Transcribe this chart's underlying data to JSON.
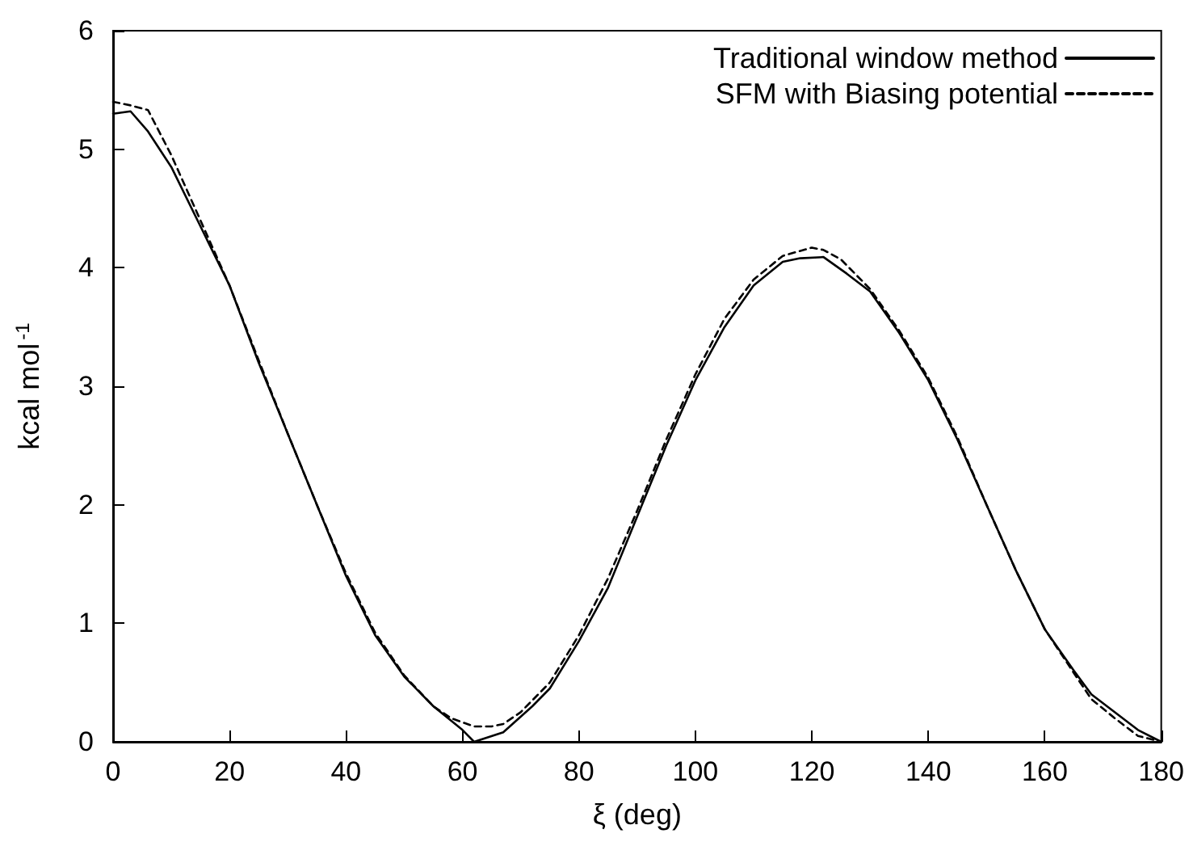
{
  "chart_data": {
    "type": "line",
    "xlabel": "ξ (deg)",
    "ylabel": "kcal mol$^{-1}$",
    "xlim": [
      0,
      180
    ],
    "xticks": [
      0,
      20,
      40,
      60,
      80,
      100,
      120,
      140,
      160,
      180
    ],
    "ylim": [
      0,
      6
    ],
    "yticks": [
      0,
      1,
      2,
      3,
      4,
      5,
      6
    ],
    "grid": false,
    "legend": "top right",
    "marker": "none",
    "series": [
      {
        "name": "Traditional window method",
        "color": "#000000",
        "line_style": "solid",
        "x": [
          0,
          3,
          6,
          10,
          15,
          20,
          25,
          30,
          35,
          40,
          45,
          50,
          55,
          60,
          62,
          67,
          72,
          75,
          80,
          85,
          90,
          95,
          100,
          105,
          110,
          115,
          118,
          122,
          126,
          130,
          135,
          140,
          145,
          150,
          155,
          160,
          165,
          168,
          172,
          176,
          180
        ],
        "values": [
          5.3,
          5.32,
          5.15,
          4.85,
          4.35,
          3.85,
          3.2,
          2.6,
          2.0,
          1.4,
          0.9,
          0.55,
          0.3,
          0.1,
          0.0,
          0.08,
          0.3,
          0.45,
          0.85,
          1.3,
          1.9,
          2.5,
          3.05,
          3.5,
          3.85,
          4.05,
          4.08,
          4.09,
          3.95,
          3.8,
          3.45,
          3.05,
          2.55,
          2.0,
          1.45,
          0.95,
          0.6,
          0.4,
          0.25,
          0.1,
          0.0
        ]
      },
      {
        "name": "SFM with Biasing potential",
        "color": "#000000",
        "line_style": "dashed",
        "x": [
          0,
          3,
          6,
          10,
          15,
          20,
          25,
          30,
          35,
          40,
          45,
          50,
          55,
          58,
          62,
          65,
          67,
          70,
          75,
          80,
          85,
          90,
          95,
          100,
          105,
          110,
          115,
          120,
          122,
          125,
          130,
          135,
          140,
          145,
          150,
          155,
          160,
          165,
          168,
          172,
          176,
          180
        ],
        "values": [
          5.4,
          5.37,
          5.33,
          4.95,
          4.4,
          3.85,
          3.22,
          2.6,
          2.0,
          1.42,
          0.92,
          0.56,
          0.3,
          0.2,
          0.13,
          0.13,
          0.15,
          0.25,
          0.5,
          0.9,
          1.38,
          1.95,
          2.55,
          3.1,
          3.57,
          3.9,
          4.1,
          4.17,
          4.15,
          4.07,
          3.82,
          3.47,
          3.07,
          2.57,
          2.0,
          1.45,
          0.95,
          0.58,
          0.36,
          0.2,
          0.05,
          0.0
        ]
      }
    ]
  }
}
